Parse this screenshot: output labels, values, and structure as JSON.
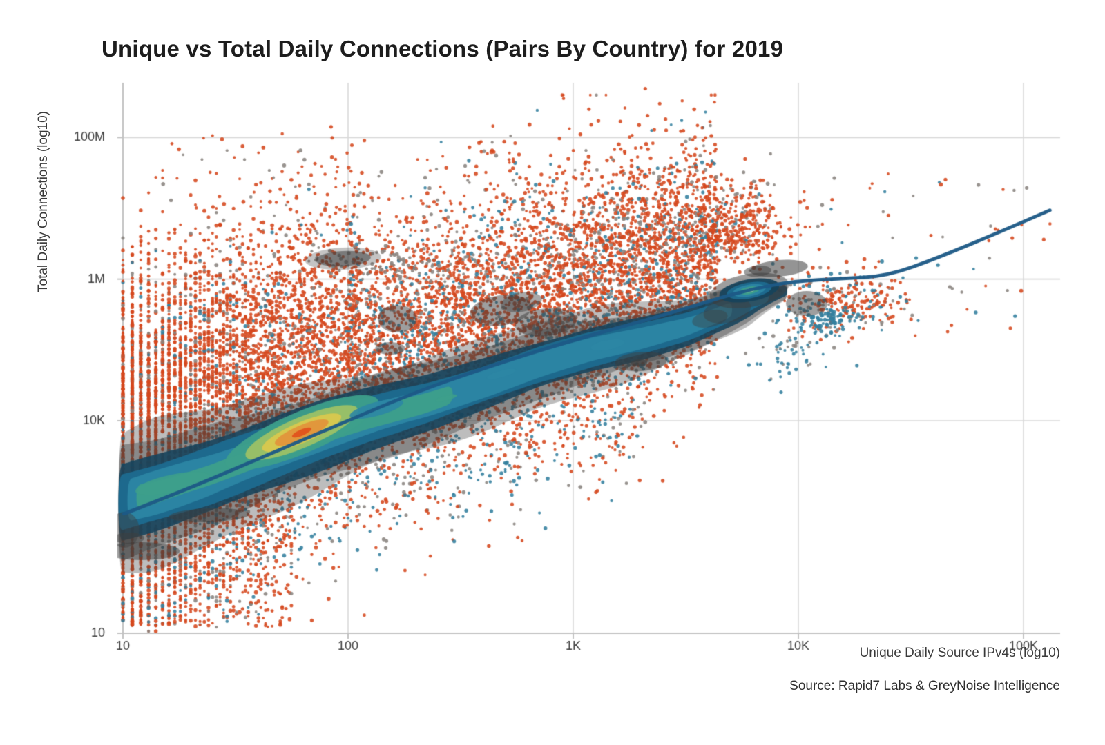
{
  "title": "Unique vs Total Daily Connections (Pairs By Country) for 2019",
  "source_note": "Source: Rapid7 Labs & GreyNoise Intelligence",
  "chart_data": {
    "type": "scatter",
    "title": "Unique vs Total Daily Connections (Pairs By Country) for 2019",
    "xlabel": "Unique Daily Source IPv4s (log10)",
    "ylabel": "Total Daily Connections (log10)",
    "x_scale": "log10",
    "y_scale": "log10",
    "xlim": [
      10,
      140000
    ],
    "ylim": [
      10,
      600000000
    ],
    "grid": true,
    "legend": "none",
    "x_ticks": [
      {
        "value": 10,
        "label": "10"
      },
      {
        "value": 100,
        "label": "100"
      },
      {
        "value": 1000,
        "label": "1K"
      },
      {
        "value": 10000,
        "label": "10K"
      },
      {
        "value": 100000,
        "label": "100K"
      }
    ],
    "y_ticks": [
      {
        "value": 10,
        "label": "10"
      },
      {
        "value": 10000,
        "label": "10K"
      },
      {
        "value": 1000000,
        "label": "1M"
      },
      {
        "value": 100000000,
        "label": "100M"
      }
    ],
    "colors": {
      "grid": "#d8d8d8",
      "axis": "#c2c2c2",
      "tick_text": "#3a3a3a",
      "trend": "#1d5a86",
      "o": "#d5481e",
      "g": "#8a8480",
      "t": "#33809e",
      "tb": "#1d95c0",
      "charcoal": "#3d3d3d",
      "navy": "#16435c",
      "steel": "#1d6b90",
      "lsteel": "#2c86a4",
      "tealc": "#3d9f8b",
      "green": "#9cc166",
      "yellow": "#d9c84e",
      "orangec": "#e2953b",
      "corec": "#e0521c",
      "pale": "#8fc79b"
    },
    "trend_line": {
      "color": "#1d5a86",
      "width": 5,
      "points": [
        [
          10.1,
          485
        ],
        [
          17.8,
          973
        ],
        [
          36.1,
          2520
        ],
        [
          78.8,
          7280
        ],
        [
          196,
          24900
        ],
        [
          399,
          54800
        ],
        [
          1000,
          139000
        ],
        [
          2330,
          287000
        ],
        [
          4090,
          501000
        ],
        [
          6270,
          730000
        ],
        [
          9590,
          937000
        ],
        [
          15700,
          1020000
        ],
        [
          24900,
          1110000
        ],
        [
          42100,
          2030000
        ],
        [
          76000,
          4450000
        ],
        [
          131000,
          9400000
        ]
      ]
    },
    "density_band": {
      "comment": "2D KDE ridge: [log10(x), log10(y), halfwidth in y-decades]",
      "center": [
        [
          0.98,
          2.845,
          0.93
        ],
        [
          1.16,
          3.006,
          0.925
        ],
        [
          1.374,
          3.221,
          0.896
        ],
        [
          1.62,
          3.513,
          0.828
        ],
        [
          1.865,
          3.786,
          0.779
        ],
        [
          2.11,
          4.049,
          0.73
        ],
        [
          2.356,
          4.263,
          0.662
        ],
        [
          2.601,
          4.526,
          0.604
        ],
        [
          2.847,
          4.799,
          0.565
        ],
        [
          3.092,
          5.023,
          0.536
        ],
        [
          3.307,
          5.169,
          0.487
        ],
        [
          3.521,
          5.344,
          0.438
        ],
        [
          3.706,
          5.578,
          0.37
        ],
        [
          3.828,
          5.734,
          0.292
        ],
        [
          3.951,
          5.841,
          0.214
        ]
      ],
      "levels": [
        {
          "f": 1.0,
          "color": "charcoal",
          "alpha": 0.34,
          "t": [
            0,
            1
          ],
          "wob": 0.11
        },
        {
          "f": 0.8,
          "color": "charcoal",
          "alpha": 0.4,
          "t": [
            0,
            1
          ],
          "wob": 0.08
        },
        {
          "f": 0.585,
          "color": "navy",
          "alpha": 0.88,
          "t": [
            0,
            1
          ],
          "wob": 0.06
        },
        {
          "f": 0.43,
          "color": "steel",
          "alpha": 0.95,
          "t": [
            0,
            0.96
          ],
          "wob": 0.06
        },
        {
          "f": 0.3,
          "color": "lsteel",
          "alpha": 0.95,
          "t": [
            0.01,
            0.86
          ],
          "wob": 0.07
        },
        {
          "f": 0.175,
          "color": "tealc",
          "alpha": 0.95,
          "t": [
            0.02,
            0.47
          ],
          "wob": 0.12
        }
      ],
      "hot_core": {
        "x": 1.794,
        "y": 3.834,
        "rot": -23,
        "rings": [
          {
            "color": "tealc",
            "rx": 0.368,
            "ry": 0.292
          },
          {
            "color": "green",
            "rx": 0.27,
            "ry": 0.214
          },
          {
            "color": "yellow",
            "rx": 0.19,
            "ry": 0.146
          },
          {
            "color": "orangec",
            "rx": 0.129,
            "ry": 0.102
          },
          {
            "color": "corec",
            "rx": 0.046,
            "ry": 0.044
          }
        ]
      },
      "knot": {
        "x": 3.782,
        "y": 5.84,
        "rot": -10,
        "rings": [
          {
            "color": "charcoal",
            "rx": 0.178,
            "ry": 0.234,
            "alpha": 0.5
          },
          {
            "color": "navy",
            "rx": 0.135,
            "ry": 0.156,
            "alpha": 0.92
          },
          {
            "color": "steel",
            "rx": 0.101,
            "ry": 0.112,
            "alpha": 0.95
          },
          {
            "color": "lsteel",
            "rx": 0.074,
            "ry": 0.083,
            "alpha": 0.95
          },
          {
            "color": "tealc",
            "rx": 0.046,
            "ry": 0.054,
            "alpha": 0.95
          },
          {
            "color": "pale",
            "rx": 0.025,
            "ry": 0.029,
            "alpha": 0.95
          }
        ]
      },
      "lenses": [
        {
          "x": 1.221,
          "y": 3.114,
          "rx": 0.169,
          "ry": 0.127,
          "rot": -12,
          "color": "tealc",
          "alpha": 0.9
        },
        {
          "x": 2.126,
          "y": 4.166,
          "rx": 0.123,
          "ry": 0.097,
          "rot": -15,
          "color": "lsteel",
          "alpha": 0.9
        },
        {
          "x": 2.436,
          "y": 4.321,
          "rx": 0.049,
          "ry": 0.039,
          "rot": -15,
          "color": "tealc",
          "alpha": 0.9
        },
        {
          "x": 2.681,
          "y": 4.662,
          "rx": 0.067,
          "ry": 0.049,
          "rot": -15,
          "color": "lsteel",
          "alpha": 0.9
        },
        {
          "x": 3.153,
          "y": 5.071,
          "rx": 0.077,
          "ry": 0.068,
          "rot": -10,
          "color": "lsteel",
          "alpha": 0.9
        }
      ],
      "blobs": [
        {
          "x": 1.978,
          "y": 6.289,
          "rx": 0.169,
          "ry": 0.156,
          "rot": -3,
          "alpha": 0.3
        },
        {
          "x": 1.978,
          "y": 6.289,
          "rx": 0.123,
          "ry": 0.107,
          "rot": -3,
          "alpha": 0.55
        },
        {
          "x": 2.218,
          "y": 5.441,
          "rx": 0.086,
          "ry": 0.195,
          "rot": 0,
          "alpha": 0.5
        },
        {
          "x": 2.187,
          "y": 5.022,
          "rx": 0.067,
          "ry": 0.088,
          "rot": 0,
          "alpha": 0.5
        },
        {
          "x": 2.678,
          "y": 5.558,
          "rx": 0.138,
          "ry": 0.214,
          "rot": -8,
          "alpha": 0.5
        },
        {
          "x": 2.877,
          "y": 5.392,
          "rx": 0.138,
          "ry": 0.195,
          "rot": -6,
          "alpha": 0.5
        },
        {
          "x": 2.77,
          "y": 5.675,
          "rx": 0.092,
          "ry": 0.136,
          "rot": -10,
          "alpha": 0.45
        },
        {
          "x": 3.301,
          "y": 4.837,
          "rx": 0.117,
          "ry": 0.136,
          "rot": -4,
          "alpha": 0.5
        },
        {
          "x": 3.292,
          "y": 4.818,
          "rx": 0.037,
          "ry": 0.049,
          "rot": -4,
          "alpha": 0.6
        },
        {
          "x": 3.914,
          "y": 6.152,
          "rx": 0.129,
          "ry": 0.117,
          "rot": -5,
          "alpha": 0.55
        },
        {
          "x": 3.819,
          "y": 6.113,
          "rx": 0.061,
          "ry": 0.078,
          "rot": -5,
          "alpha": 0.5
        },
        {
          "x": 4.037,
          "y": 5.655,
          "rx": 0.092,
          "ry": 0.175,
          "rot": 0,
          "alpha": 0.5
        },
        {
          "x": 3.684,
          "y": 5.558,
          "rx": 0.107,
          "ry": 0.175,
          "rot": -12,
          "alpha": 0.45
        },
        {
          "x": 3.607,
          "y": 5.441,
          "rx": 0.08,
          "ry": 0.117,
          "rot": -12,
          "alpha": 0.4
        },
        {
          "x": 1.083,
          "y": 2.159,
          "rx": 0.169,
          "ry": 0.127,
          "rot": 0,
          "alpha": 0.5
        },
        {
          "x": 1.028,
          "y": 2.344,
          "rx": 0.067,
          "ry": 0.078,
          "rot": 0,
          "alpha": 0.5
        },
        {
          "x": 1.383,
          "y": 2.666,
          "rx": 0.178,
          "ry": 0.097,
          "rot": -2,
          "alpha": 0.5
        },
        {
          "x": 1.006,
          "y": 2.46,
          "rx": 0.067,
          "ry": 0.253,
          "rot": 0,
          "alpha": 0.45
        }
      ]
    },
    "scatter": {
      "dot_radius": [
        1.9,
        2.9
      ],
      "dot_alpha": 0.88,
      "seed": 1337,
      "groups": [
        {
          "name": "left-columns",
          "n": 5200,
          "xlog": [
            1.0,
            2.05
          ],
          "xpow": 1.35,
          "quantize": true,
          "dy_mean": 1.15,
          "dy_sd": 1.05,
          "mix": {
            "o": 0.82,
            "g": 0.11,
            "t": 0.07
          }
        },
        {
          "name": "left-deep-tail",
          "n": 750,
          "xlog": [
            1.0,
            1.75
          ],
          "xpow": 1.5,
          "quantize": true,
          "ylog": [
            1.08,
            2.9
          ],
          "mix": {
            "o": 0.8,
            "g": 0.12,
            "t": 0.08
          }
        },
        {
          "name": "mid-cloud",
          "n": 5400,
          "xlog": [
            2.0,
            3.64
          ],
          "xpow": 1.0,
          "quantize": true,
          "dy_mean": 0.95,
          "dy_sd": 0.85,
          "mix": {
            "o": 0.74,
            "g": 0.15,
            "t": 0.11
          }
        },
        {
          "name": "band-core",
          "n": 1500,
          "xlog": [
            1.0,
            3.6
          ],
          "xpow": 1.2,
          "quantize": true,
          "dy_mean": 0.05,
          "dy_sd": 0.3,
          "mix": {
            "o": 0.4,
            "g": 0.28,
            "t": 0.32
          }
        },
        {
          "name": "below-tail",
          "n": 1000,
          "xlog": [
            1.1,
            3.35
          ],
          "xpow": 1.25,
          "quantize": true,
          "dy_mean": -0.85,
          "dy_sd": 0.6,
          "mix": {
            "o": 0.48,
            "t": 0.32,
            "g": 0.2
          }
        },
        {
          "name": "knot-cloud",
          "n": 430,
          "cx": 3.72,
          "cy": 6.72,
          "sx": 0.13,
          "sy": 0.3,
          "mix": {
            "o": 0.86,
            "g": 0.11,
            "t": 0.03
          }
        },
        {
          "name": "right-mid",
          "n": 280,
          "cx": 4.2,
          "cy": 5.65,
          "sx": 0.15,
          "sy": 0.25,
          "mix": {
            "o": 0.58,
            "g": 0.22,
            "t": 0.2
          }
        },
        {
          "name": "teal-pocket",
          "n": 95,
          "cx": 4.12,
          "cy": 5.42,
          "sx": 0.07,
          "sy": 0.1,
          "mix": {
            "t": 1
          }
        },
        {
          "name": "below-knot-teal",
          "n": 55,
          "cx": 3.93,
          "cy": 4.92,
          "sx": 0.1,
          "sy": 0.2,
          "mix": {
            "t": 0.8,
            "g": 0.2
          }
        },
        {
          "name": "gray-streak",
          "n": 75,
          "cx": 2.22,
          "cy": 6.17,
          "sx": 0.15,
          "sy": 0.09,
          "mix": {
            "g": 0.82,
            "o": 0.18
          }
        },
        {
          "name": "far-right-sparse",
          "n": 60,
          "xlog": [
            3.95,
            5.12
          ],
          "ylog": [
            5.2,
            7.5
          ],
          "uniform": true,
          "mix": {
            "o": 0.55,
            "g": 0.25,
            "t": 0.2
          }
        },
        {
          "name": "top-sparse",
          "n": 120,
          "xlog": [
            1.15,
            3.95
          ],
          "ylog": [
            6.85,
            8.05
          ],
          "uniform": true,
          "mix": {
            "o": 0.74,
            "g": 0.26
          }
        }
      ],
      "outliers": [
        [
          3.32,
          8.69,
          "o"
        ],
        [
          3.33,
          8.31,
          "o"
        ],
        [
          3.07,
          8.4,
          "o"
        ],
        [
          3.08,
          8.18,
          "o"
        ],
        [
          2.64,
          7.82,
          "o"
        ],
        [
          3.36,
          8.11,
          "o"
        ],
        [
          3.41,
          8.26,
          "o"
        ],
        [
          4.8,
          7.33,
          "g"
        ],
        [
          4.95,
          6.58,
          "o"
        ],
        [
          5.09,
          6.56,
          "o"
        ],
        [
          4.48,
          5.69,
          "t"
        ],
        [
          1.4,
          7.02,
          "o"
        ],
        [
          1.08,
          6.54,
          "o"
        ],
        [
          2.05,
          7.35,
          "o"
        ],
        [
          2.52,
          7.6,
          "g"
        ],
        [
          4.26,
          4.78,
          "t"
        ],
        [
          3.63,
          7.9,
          "o"
        ],
        [
          4.4,
          6.9,
          "o"
        ],
        [
          4.62,
          6.2,
          "t"
        ],
        [
          4.15,
          7.12,
          "o"
        ]
      ]
    }
  }
}
